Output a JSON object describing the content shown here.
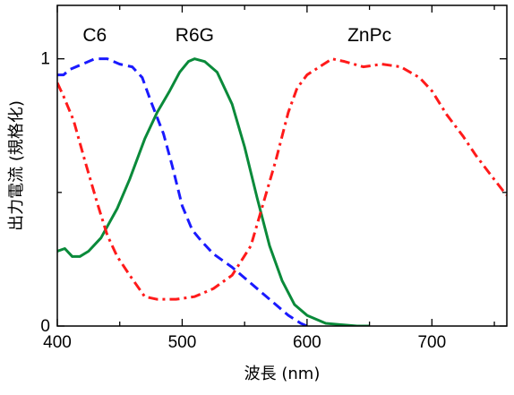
{
  "chart_data": {
    "type": "line",
    "title": "",
    "xlabel": "波長 (nm)",
    "ylabel": "出力電流 (規格化)",
    "xlim": [
      400,
      760
    ],
    "ylim": [
      0,
      1.2
    ],
    "x_ticks": [
      400,
      500,
      600,
      700
    ],
    "y_ticks": [
      0,
      1
    ],
    "grid": false,
    "series": [
      {
        "name": "C6",
        "color": "#1a1aff",
        "dash": "dashed",
        "points": [
          [
            400,
            0.94
          ],
          [
            405,
            0.94
          ],
          [
            410,
            0.96
          ],
          [
            420,
            0.98
          ],
          [
            430,
            1.0
          ],
          [
            440,
            1.0
          ],
          [
            450,
            0.98
          ],
          [
            460,
            0.97
          ],
          [
            468,
            0.93
          ],
          [
            475,
            0.84
          ],
          [
            485,
            0.72
          ],
          [
            492,
            0.6
          ],
          [
            500,
            0.45
          ],
          [
            508,
            0.36
          ],
          [
            515,
            0.32
          ],
          [
            525,
            0.27
          ],
          [
            540,
            0.22
          ],
          [
            555,
            0.16
          ],
          [
            570,
            0.1
          ],
          [
            585,
            0.04
          ],
          [
            595,
            0.01
          ],
          [
            600,
            0.0
          ]
        ]
      },
      {
        "name": "R6G",
        "color": "#0a8a3a",
        "dash": "solid",
        "points": [
          [
            400,
            0.28
          ],
          [
            406,
            0.29
          ],
          [
            412,
            0.26
          ],
          [
            418,
            0.26
          ],
          [
            425,
            0.28
          ],
          [
            435,
            0.33
          ],
          [
            448,
            0.44
          ],
          [
            458,
            0.55
          ],
          [
            470,
            0.7
          ],
          [
            480,
            0.8
          ],
          [
            490,
            0.88
          ],
          [
            498,
            0.95
          ],
          [
            505,
            0.99
          ],
          [
            510,
            1.0
          ],
          [
            518,
            0.99
          ],
          [
            528,
            0.95
          ],
          [
            540,
            0.83
          ],
          [
            550,
            0.67
          ],
          [
            560,
            0.48
          ],
          [
            570,
            0.3
          ],
          [
            580,
            0.17
          ],
          [
            590,
            0.08
          ],
          [
            600,
            0.04
          ],
          [
            615,
            0.01
          ],
          [
            640,
            0.0
          ],
          [
            650,
            0.0
          ]
        ]
      },
      {
        "name": "ZnPc",
        "color": "#ff1a1a",
        "dash": "dashdot",
        "points": [
          [
            400,
            0.91
          ],
          [
            405,
            0.86
          ],
          [
            413,
            0.77
          ],
          [
            422,
            0.62
          ],
          [
            432,
            0.46
          ],
          [
            440,
            0.34
          ],
          [
            448,
            0.26
          ],
          [
            458,
            0.19
          ],
          [
            470,
            0.11
          ],
          [
            480,
            0.1
          ],
          [
            495,
            0.1
          ],
          [
            510,
            0.11
          ],
          [
            525,
            0.14
          ],
          [
            540,
            0.19
          ],
          [
            555,
            0.3
          ],
          [
            565,
            0.46
          ],
          [
            575,
            0.62
          ],
          [
            585,
            0.8
          ],
          [
            592,
            0.89
          ],
          [
            600,
            0.94
          ],
          [
            610,
            0.97
          ],
          [
            620,
            1.0
          ],
          [
            630,
            0.99
          ],
          [
            645,
            0.97
          ],
          [
            660,
            0.98
          ],
          [
            675,
            0.97
          ],
          [
            690,
            0.93
          ],
          [
            700,
            0.88
          ],
          [
            712,
            0.79
          ],
          [
            725,
            0.71
          ],
          [
            735,
            0.64
          ],
          [
            748,
            0.56
          ],
          [
            758,
            0.5
          ],
          [
            760,
            0.49
          ]
        ]
      }
    ],
    "series_label_positions": [
      {
        "name": "C6",
        "x": 430,
        "y": 1.09
      },
      {
        "name": "R6G",
        "x": 510,
        "y": 1.09
      },
      {
        "name": "ZnPc",
        "x": 650,
        "y": 1.09
      }
    ]
  }
}
